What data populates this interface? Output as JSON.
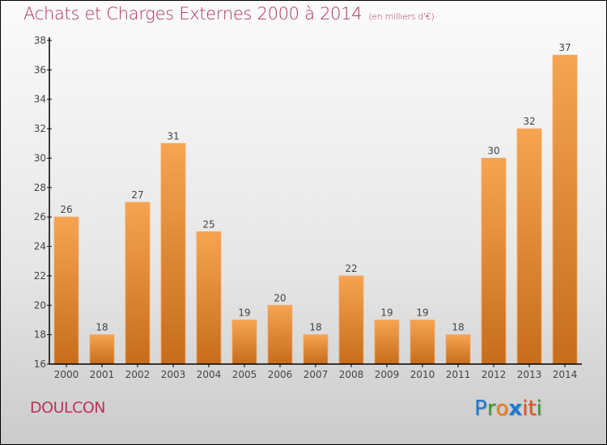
{
  "chart_data": {
    "type": "bar",
    "title": "Achats et Charges Externes 2000 à 2014",
    "subtitle": "(en milliers d'€)",
    "xlabel": "",
    "ylabel": "",
    "categories": [
      "2000",
      "2001",
      "2002",
      "2003",
      "2004",
      "2005",
      "2006",
      "2007",
      "2008",
      "2009",
      "2010",
      "2011",
      "2012",
      "2013",
      "2014"
    ],
    "values": [
      26,
      18,
      27,
      31,
      25,
      19,
      20,
      18,
      22,
      19,
      19,
      18,
      30,
      32,
      37
    ],
    "ylim": [
      16,
      38
    ],
    "yticks": [
      16,
      18,
      20,
      22,
      24,
      26,
      28,
      30,
      32,
      34,
      36,
      38
    ],
    "grid": false,
    "legend": "none",
    "bar_color_top": "#f6a452",
    "bar_color_bottom": "#c66d1c"
  },
  "footer": {
    "city": "DOULCON",
    "logo_letters": [
      {
        "ch": "P",
        "color": "#1f78d1"
      },
      {
        "ch": "r",
        "color": "#3a9a2a"
      },
      {
        "ch": "o",
        "color": "#f07c12"
      },
      {
        "ch": "x",
        "color": "#1f78d1"
      },
      {
        "ch": "i",
        "color": "#e8501a"
      },
      {
        "ch": "t",
        "color": "#e8501a"
      },
      {
        "ch": "i",
        "color": "#3a9a2a"
      }
    ]
  },
  "colors": {
    "title": "#b0305a",
    "axis": "#000000",
    "label_text": "#444444"
  }
}
